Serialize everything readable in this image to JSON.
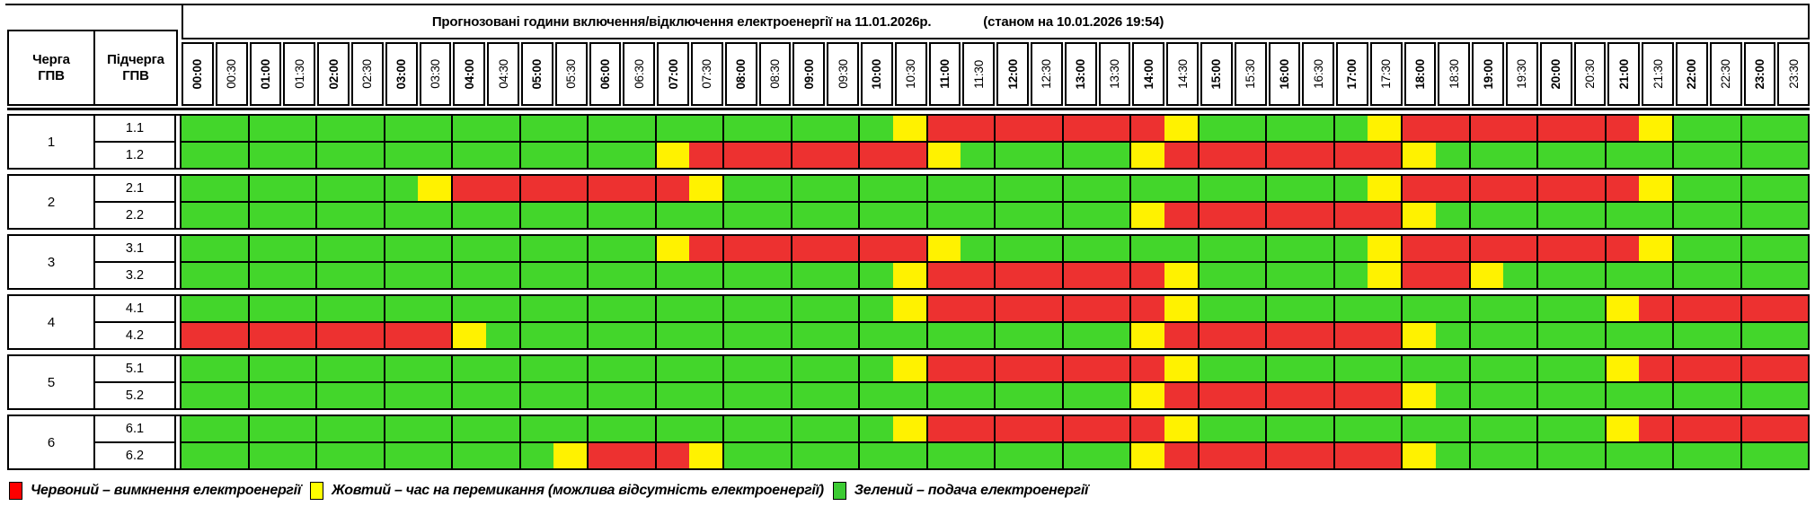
{
  "header": {
    "title": "Прогнозовані години включення/відключення електроенергії на 11.01.2026р.",
    "as_of": "(станом на 10.01.2026 19:54)"
  },
  "corner": {
    "queue": "Черга\nГПВ",
    "subqueue": "Підчерга\nГПВ"
  },
  "legend": [
    {
      "name": "red",
      "color": "#FF0000",
      "label": "Червоний – вимкнення електроенергії"
    },
    {
      "name": "yellow",
      "color": "#FFFF00",
      "label": "Жовтий – час на перемикання (можлива відсутність електроенергії)"
    },
    {
      "name": "green",
      "color": "#3CCB33",
      "label": "Зелений – подача електроенергії"
    }
  ],
  "chart_data": {
    "type": "heatmap",
    "title": "Прогнозовані години включення/відключення електроенергії на 11.01.2026р.",
    "as_of": "10.01.2026 19:54",
    "categories": [
      "00:00",
      "00:30",
      "01:00",
      "01:30",
      "02:00",
      "02:30",
      "03:00",
      "03:30",
      "04:00",
      "04:30",
      "05:00",
      "05:30",
      "06:00",
      "06:30",
      "07:00",
      "07:30",
      "08:00",
      "08:30",
      "09:00",
      "09:30",
      "10:00",
      "10:30",
      "11:00",
      "11:30",
      "12:00",
      "12:30",
      "13:00",
      "13:30",
      "14:00",
      "14:30",
      "15:00",
      "15:30",
      "16:00",
      "16:30",
      "17:00",
      "17:30",
      "18:00",
      "18:30",
      "19:00",
      "19:30",
      "20:00",
      "20:30",
      "21:00",
      "21:30",
      "22:00",
      "22:30",
      "23:00",
      "23:30"
    ],
    "status_colors": {
      "G": "#43D62B",
      "Y": "#FFF200",
      "R": "#ED3130"
    },
    "status_meaning": {
      "G": "подача електроенергії",
      "Y": "час на перемикання (можлива відсутність електроенергії)",
      "R": "вимкнення електроенергії"
    },
    "rows": [
      {
        "queue": "1",
        "label": "1.1",
        "cells": "GGGGGGGGGGGGGGGGGGGGGYRRRRRRRYGGGGGYRRRRRRRYGGGG"
      },
      {
        "queue": "1",
        "label": "1.2",
        "cells": "GGGGGGGGGGGGGGYRRRRRRRYGGGGGYRRRRRRRYGGGGGGGGGGG"
      },
      {
        "queue": "2",
        "label": "2.1",
        "cells": "GGGGGGGYRRRRRRRYGGGGGGGGGGGGGGGGGGGYRRRRRRRYGGGG"
      },
      {
        "queue": "2",
        "label": "2.2",
        "cells": "GGGGGGGGGGGGGGGGGGGGGGGGGGGGYRRRRRRRYGGGGGGGGGGG"
      },
      {
        "queue": "3",
        "label": "3.1",
        "cells": "GGGGGGGGGGGGGGYRRRRRRRYGGGGGGGGGGGGYRRRRRRRYGGGG"
      },
      {
        "queue": "3",
        "label": "3.2",
        "cells": "GGGGGGGGGGGGGGGGGGGGGYRRRRRRRYGGGGGYRRYGGGGGGGGG"
      },
      {
        "queue": "4",
        "label": "4.1",
        "cells": "GGGGGGGGGGGGGGGGGGGGGYRRRRRRRYGGGGGGGGGGGGYRRRRR"
      },
      {
        "queue": "4",
        "label": "4.2",
        "cells": "RRRRRRRRYGGGGGGGGGGGGGGGGGGGYRRRRRRRYGGGGGGGGGGG"
      },
      {
        "queue": "5",
        "label": "5.1",
        "cells": "GGGGGGGGGGGGGGGGGGGGGYRRRRRRRYGGGGGGGGGGGGYRRRRR"
      },
      {
        "queue": "5",
        "label": "5.2",
        "cells": "GGGGGGGGGGGGGGGGGGGGGGGGGGGGYRRRRRRRYGGGGGGGGGGG"
      },
      {
        "queue": "6",
        "label": "6.1",
        "cells": "GGGGGGGGGGGGGGGGGGGGGYRRRRRRRYGGGGGGGGGGGGYRRRRR"
      },
      {
        "queue": "6",
        "label": "6.2",
        "cells": "GGGGGGGGGGGYRRRYGGGGGGGGGGGGYRRRRRRRYGGGGGGGGGGG"
      }
    ]
  }
}
